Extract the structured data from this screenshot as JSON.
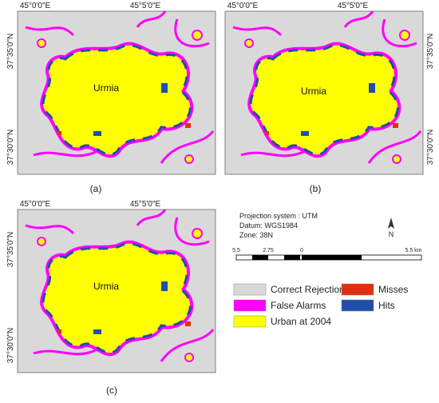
{
  "panels": [
    {
      "label": "(a)",
      "city": "Urmia",
      "top_labels": [
        "45°0'0\"E",
        "45°5'0\"E"
      ],
      "side_labels": [
        "37°35'0\"N",
        "37°30'0\"N"
      ]
    },
    {
      "label": "(b)",
      "city": "Urmia",
      "top_labels": [
        "45°0'0\"E",
        "45°5'0\"E"
      ],
      "side_labels": [
        "37°35'0\"N",
        "37°30'0\"N"
      ]
    },
    {
      "label": "(c)",
      "city": "Urmia",
      "top_labels": [
        "45°0'0\"E",
        "45°5'0\"E"
      ],
      "side_labels": [
        "37°35'0\"N",
        "37°30'0\"N"
      ]
    }
  ],
  "info": {
    "lines": [
      "Projection system : UTM",
      "Datum: WGS1984",
      "Zone: 38N"
    ]
  },
  "north": "N",
  "scale": {
    "labels": [
      "5.5",
      "2.75",
      "0",
      "5.5 km"
    ]
  },
  "legend": [
    "Correct Rejections",
    "Misses",
    "False Alarms",
    "Hits",
    "Urban at 2004"
  ]
}
